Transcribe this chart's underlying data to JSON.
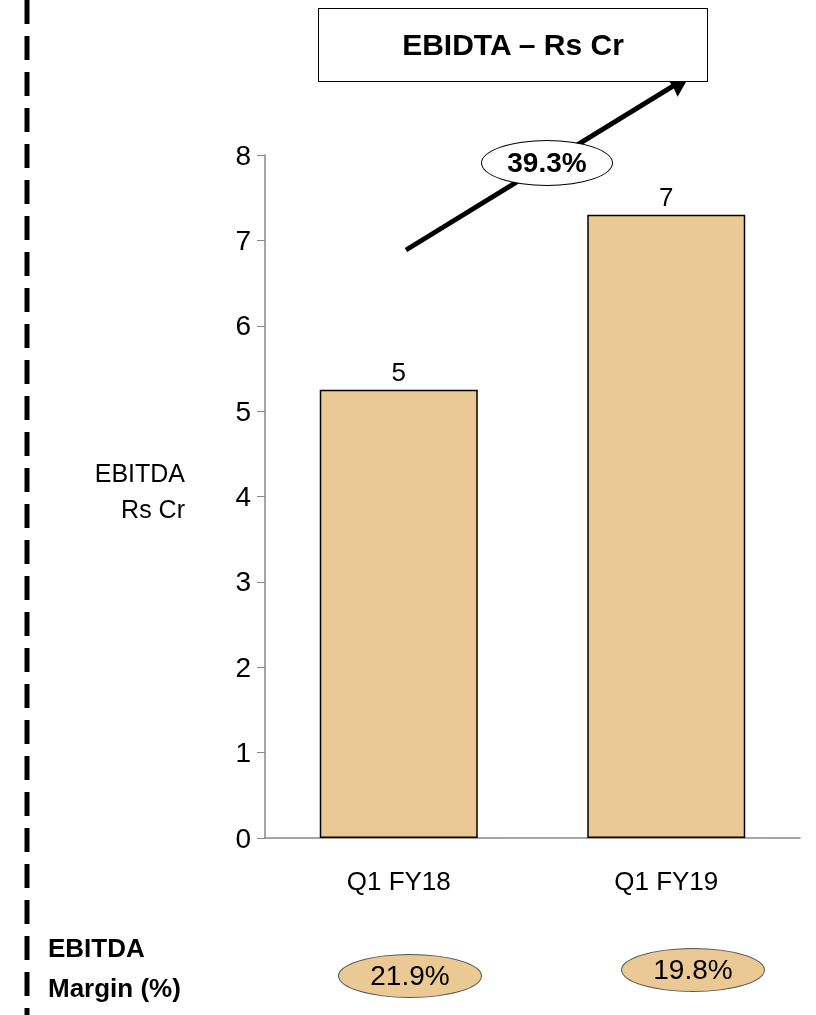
{
  "chart_data": {
    "type": "bar",
    "title": "EBIDTA – Rs Cr",
    "ylabel": "EBITDA Rs Cr",
    "categories": [
      "Q1 FY18",
      "Q1 FY19"
    ],
    "values": [
      5.25,
      7.3
    ],
    "value_labels": [
      "5",
      "7"
    ],
    "color": "#ebc995",
    "ylim": [
      0,
      8
    ],
    "yticks": [
      0,
      1,
      2,
      3,
      4,
      5,
      6,
      7,
      8
    ],
    "annotations": [
      "39.3%",
      "EBITDA Margin (%)",
      "21.9%",
      "19.8%"
    ]
  }
}
